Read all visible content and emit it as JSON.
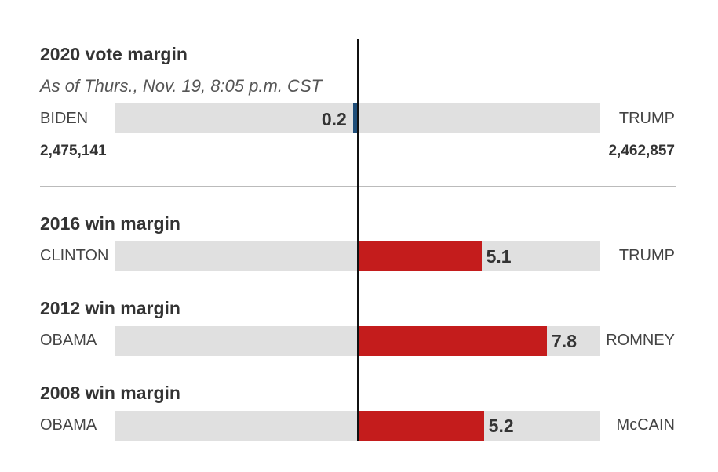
{
  "chart_data": {
    "type": "bar",
    "axis": {
      "min": -10,
      "max": 10,
      "center": 0
    },
    "current": {
      "title": "2020 vote margin",
      "subtitle": "As of Thurs., Nov. 19, 8:05 p.m. CST",
      "left_candidate": "BIDEN",
      "right_candidate": "TRUMP",
      "left_votes": "2,475,141",
      "right_votes": "2,462,857",
      "margin": 0.2,
      "margin_label": "0.2",
      "leader": "left",
      "color": "#1f4e79"
    },
    "past": [
      {
        "title": "2016 win margin",
        "left_candidate": "CLINTON",
        "right_candidate": "TRUMP",
        "margin": 5.1,
        "margin_label": "5.1",
        "leader": "right",
        "color": "#c41c1c"
      },
      {
        "title": "2012 win margin",
        "left_candidate": "OBAMA",
        "right_candidate": "ROMNEY",
        "margin": 7.8,
        "margin_label": "7.8",
        "leader": "right",
        "color": "#c41c1c"
      },
      {
        "title": "2008 win margin",
        "left_candidate": "OBAMA",
        "right_candidate": "McCAIN",
        "margin": 5.2,
        "margin_label": "5.2",
        "leader": "right",
        "color": "#c41c1c"
      }
    ]
  },
  "colors": {
    "track": "#e0e0e0",
    "center_line": "#111111",
    "divider": "#bbbbbb"
  }
}
